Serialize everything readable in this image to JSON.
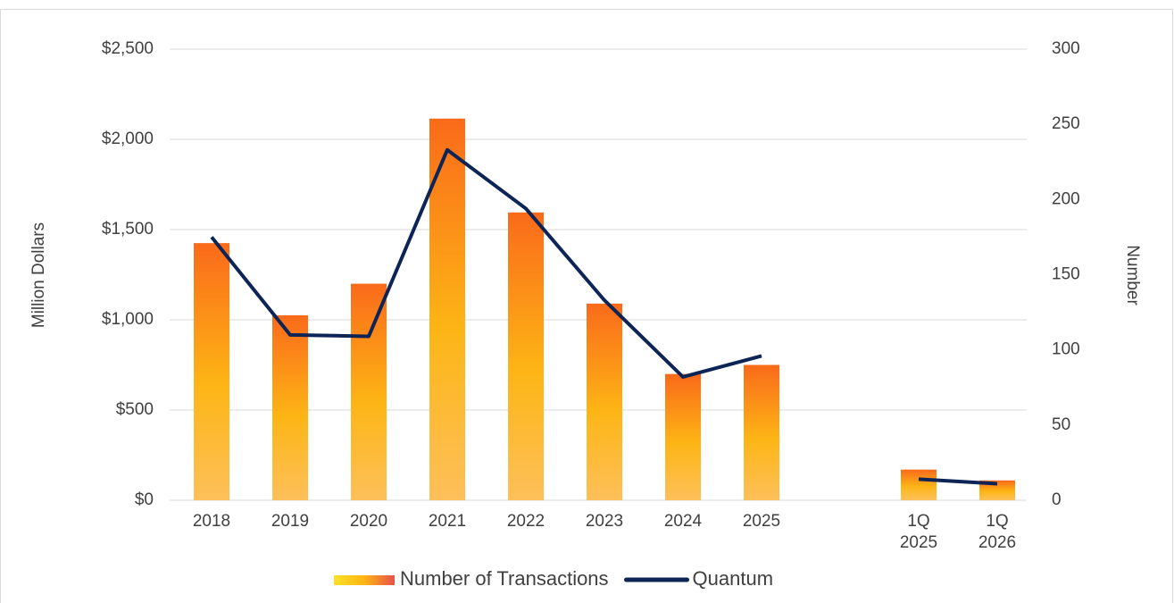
{
  "chart_data": {
    "type": "bar-line",
    "categories": [
      "2018",
      "2019",
      "2020",
      "2021",
      "2022",
      "2023",
      "2024",
      "2025",
      null,
      "1Q 2025",
      "1Q 2026"
    ],
    "series": [
      {
        "name": "Number of Transactions",
        "type": "bar",
        "color": "#fa6a1a",
        "axis": "y",
        "values": [
          1425,
          1025,
          1200,
          2115,
          1595,
          1090,
          700,
          750,
          null,
          170,
          110
        ]
      },
      {
        "name": "Quantum",
        "type": "line",
        "color": "#0d2456",
        "axis": "y2",
        "values": [
          175,
          110,
          109,
          233,
          194,
          133,
          82,
          96,
          null,
          14,
          11
        ]
      }
    ],
    "ylabel": "Million Dollars",
    "y2label": "Number",
    "ylim": [
      0,
      2500
    ],
    "yticks": [
      {
        "value": 0,
        "label": "$0"
      },
      {
        "value": 500,
        "label": "$500"
      },
      {
        "value": 1000,
        "label": "$1,000"
      },
      {
        "value": 1500,
        "label": "$1,500"
      },
      {
        "value": 2000,
        "label": "$2,000"
      },
      {
        "value": 2500,
        "label": "$2,500"
      }
    ],
    "y2lim": [
      0,
      300
    ],
    "y2ticks": [
      0,
      50,
      100,
      150,
      200,
      250,
      300
    ],
    "grid": true,
    "legend": "bottom"
  }
}
